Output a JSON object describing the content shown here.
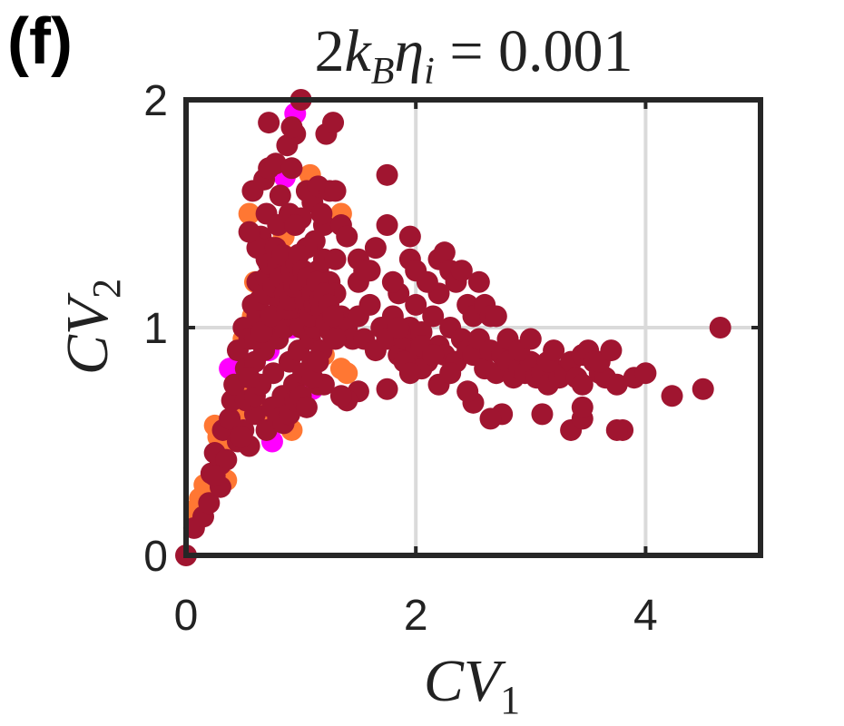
{
  "panel_label": "(f)",
  "chart_data": {
    "type": "scatter",
    "title": "2k_Bη_i = 0.001",
    "title_parts": {
      "pre": "2",
      "k": "k",
      "k_sub": "B",
      "eta": "η",
      "eta_sub": "i",
      "post": " = 0.001"
    },
    "xlabel": "CV_1",
    "xlabel_parts": {
      "main": "CV",
      "sub": "1"
    },
    "ylabel": "CV_2",
    "ylabel_parts": {
      "main": "CV",
      "sub": "2"
    },
    "xlim": [
      0,
      5
    ],
    "ylim": [
      0,
      2
    ],
    "xticks": [
      0,
      2,
      4
    ],
    "yticks": [
      0,
      1,
      2
    ],
    "grid": true,
    "series": [
      {
        "color": "#ff00ff",
        "points": [
          [
            0.95,
            1.94
          ],
          [
            0.86,
            1.66
          ],
          [
            0.72,
            1.15
          ],
          [
            0.78,
            0.98
          ],
          [
            0.6,
            0.85
          ],
          [
            0.38,
            0.82
          ],
          [
            0.75,
            0.5
          ],
          [
            1.1,
            0.73
          ],
          [
            0.72,
            0.9
          ],
          [
            0.92,
            1.0
          ]
        ]
      },
      {
        "color": "#ff7733",
        "points": [
          [
            0.12,
            0.25
          ],
          [
            0.16,
            0.31
          ],
          [
            0.28,
            0.52
          ],
          [
            0.3,
            0.46
          ],
          [
            0.35,
            0.33
          ],
          [
            0.08,
            0.2
          ],
          [
            0.25,
            0.57
          ],
          [
            1.35,
            1.5
          ],
          [
            1.08,
            1.67
          ],
          [
            0.85,
            1.4
          ],
          [
            0.9,
            1.25
          ],
          [
            0.55,
            1.5
          ],
          [
            0.6,
            1.2
          ],
          [
            0.58,
            1.05
          ],
          [
            0.5,
            0.95
          ],
          [
            0.48,
            0.72
          ],
          [
            0.7,
            0.62
          ],
          [
            1.2,
            0.88
          ],
          [
            1.35,
            0.82
          ],
          [
            1.4,
            0.8
          ],
          [
            0.92,
            0.55
          ],
          [
            0.42,
            0.6
          ],
          [
            0.5,
            0.65
          ],
          [
            0.85,
            1.32
          ]
        ]
      },
      {
        "color": "#a01530",
        "points": [
          [
            0.0,
            0.0
          ],
          [
            0.07,
            0.12
          ],
          [
            0.15,
            0.17
          ],
          [
            0.2,
            0.23
          ],
          [
            0.22,
            0.36
          ],
          [
            0.25,
            0.45
          ],
          [
            0.3,
            0.4
          ],
          [
            0.32,
            0.55
          ],
          [
            0.38,
            0.6
          ],
          [
            0.4,
            0.68
          ],
          [
            0.45,
            0.5
          ],
          [
            0.5,
            0.55
          ],
          [
            0.55,
            0.48
          ],
          [
            0.6,
            0.62
          ],
          [
            0.42,
            0.75
          ],
          [
            0.45,
            0.9
          ],
          [
            0.5,
            1.0
          ],
          [
            0.52,
            0.82
          ],
          [
            0.55,
            0.95
          ],
          [
            0.58,
            1.1
          ],
          [
            0.6,
            0.85
          ],
          [
            0.62,
            1.2
          ],
          [
            0.65,
            1.05
          ],
          [
            0.68,
            0.9
          ],
          [
            0.7,
            1.3
          ],
          [
            0.72,
            1.0
          ],
          [
            0.74,
            1.15
          ],
          [
            0.76,
            0.8
          ],
          [
            0.78,
            1.25
          ],
          [
            0.8,
            0.95
          ],
          [
            0.82,
            1.1
          ],
          [
            0.84,
            0.7
          ],
          [
            0.86,
            1.0
          ],
          [
            0.88,
            1.2
          ],
          [
            0.9,
            0.85
          ],
          [
            0.92,
            1.05
          ],
          [
            0.94,
            0.75
          ],
          [
            0.96,
            1.15
          ],
          [
            0.98,
            0.9
          ],
          [
            1.0,
            1.0
          ],
          [
            1.02,
            0.8
          ],
          [
            1.05,
            1.1
          ],
          [
            1.08,
            0.95
          ],
          [
            1.1,
            0.85
          ],
          [
            1.12,
            1.0
          ],
          [
            1.15,
            0.75
          ],
          [
            1.18,
            0.9
          ],
          [
            1.2,
            1.05
          ],
          [
            0.65,
            1.4
          ],
          [
            0.7,
            1.5
          ],
          [
            0.75,
            1.35
          ],
          [
            0.8,
            1.45
          ],
          [
            0.85,
            1.3
          ],
          [
            0.9,
            1.5
          ],
          [
            0.62,
            1.35
          ],
          [
            0.55,
            1.42
          ],
          [
            0.58,
            1.6
          ],
          [
            0.68,
            1.65
          ],
          [
            0.72,
            1.7
          ],
          [
            0.78,
            1.72
          ],
          [
            0.82,
            1.58
          ],
          [
            0.88,
            1.8
          ],
          [
            0.92,
            1.7
          ],
          [
            0.95,
            1.85
          ],
          [
            1.0,
            2.0
          ],
          [
            0.72,
            1.9
          ],
          [
            0.92,
            1.88
          ],
          [
            1.15,
            1.25
          ],
          [
            1.2,
            1.45
          ],
          [
            1.05,
            1.6
          ],
          [
            1.1,
            1.55
          ],
          [
            1.15,
            1.62
          ],
          [
            1.2,
            1.3
          ],
          [
            1.25,
            1.6
          ],
          [
            1.3,
            1.6
          ],
          [
            1.22,
            1.85
          ],
          [
            1.28,
            1.9
          ],
          [
            1.18,
            1.5
          ],
          [
            1.12,
            1.38
          ],
          [
            1.0,
            1.48
          ],
          [
            1.05,
            1.35
          ],
          [
            0.98,
            1.22
          ],
          [
            0.95,
            1.45
          ],
          [
            1.25,
            1.2
          ],
          [
            1.3,
            1.15
          ],
          [
            1.35,
            1.05
          ],
          [
            1.4,
            1.0
          ],
          [
            1.45,
            0.95
          ],
          [
            1.5,
            1.05
          ],
          [
            1.55,
            0.95
          ],
          [
            1.6,
            1.1
          ],
          [
            1.65,
            0.9
          ],
          [
            1.7,
            1.0
          ],
          [
            1.75,
            0.95
          ],
          [
            1.8,
            1.05
          ],
          [
            1.85,
            0.88
          ],
          [
            1.9,
            0.95
          ],
          [
            1.95,
            1.0
          ],
          [
            2.0,
            0.9
          ],
          [
            2.05,
            0.98
          ],
          [
            2.1,
            0.85
          ],
          [
            2.15,
            1.05
          ],
          [
            2.2,
            0.92
          ],
          [
            2.25,
            0.88
          ],
          [
            2.3,
            1.0
          ],
          [
            2.35,
            0.85
          ],
          [
            2.4,
            0.95
          ],
          [
            2.45,
            0.9
          ],
          [
            2.5,
            0.88
          ],
          [
            2.55,
            0.95
          ],
          [
            2.6,
            0.82
          ],
          [
            2.65,
            0.9
          ],
          [
            2.7,
            0.8
          ],
          [
            2.75,
            0.88
          ],
          [
            2.8,
            0.85
          ],
          [
            2.85,
            0.78
          ],
          [
            2.9,
            0.82
          ],
          [
            2.95,
            0.8
          ],
          [
            3.0,
            0.85
          ],
          [
            3.05,
            0.78
          ],
          [
            3.1,
            0.8
          ],
          [
            3.15,
            0.75
          ],
          [
            3.2,
            0.82
          ],
          [
            3.25,
            0.78
          ],
          [
            3.3,
            0.8
          ],
          [
            3.35,
            0.85
          ],
          [
            3.4,
            0.78
          ],
          [
            3.45,
            0.88
          ],
          [
            3.5,
            0.9
          ],
          [
            3.55,
            0.85
          ],
          [
            3.6,
            0.8
          ],
          [
            3.65,
            0.78
          ],
          [
            3.75,
            0.75
          ],
          [
            3.9,
            0.78
          ],
          [
            4.0,
            0.8
          ],
          [
            4.5,
            0.73
          ],
          [
            4.23,
            0.7
          ],
          [
            4.65,
            1.0
          ],
          [
            3.8,
            0.55
          ],
          [
            3.75,
            0.55
          ],
          [
            3.35,
            0.55
          ],
          [
            3.45,
            0.6
          ],
          [
            3.45,
            0.65
          ],
          [
            3.1,
            0.62
          ],
          [
            2.75,
            0.62
          ],
          [
            2.65,
            0.6
          ],
          [
            2.5,
            0.67
          ],
          [
            2.45,
            0.72
          ],
          [
            2.2,
            0.75
          ],
          [
            2.05,
            0.82
          ],
          [
            1.75,
            0.73
          ],
          [
            1.5,
            0.72
          ],
          [
            1.4,
            0.68
          ],
          [
            1.35,
            0.7
          ],
          [
            1.2,
            0.75
          ],
          [
            1.75,
            1.67
          ],
          [
            1.75,
            1.45
          ],
          [
            1.95,
            1.4
          ],
          [
            1.65,
            1.35
          ],
          [
            1.6,
            1.25
          ],
          [
            1.5,
            1.2
          ],
          [
            1.3,
            1.3
          ],
          [
            1.35,
            1.45
          ],
          [
            1.4,
            1.4
          ],
          [
            1.5,
            1.3
          ],
          [
            1.55,
            1.25
          ],
          [
            1.95,
            1.3
          ],
          [
            2.0,
            1.25
          ],
          [
            2.2,
            1.3
          ],
          [
            2.25,
            1.33
          ],
          [
            2.3,
            1.25
          ],
          [
            2.35,
            1.2
          ],
          [
            2.4,
            1.25
          ],
          [
            2.45,
            1.1
          ],
          [
            2.5,
            1.05
          ],
          [
            2.6,
            1.1
          ],
          [
            2.65,
            1.05
          ],
          [
            2.55,
            1.2
          ],
          [
            2.2,
            1.15
          ],
          [
            2.1,
            1.2
          ],
          [
            2.0,
            1.1
          ],
          [
            1.85,
            1.15
          ],
          [
            1.8,
            1.2
          ],
          [
            2.7,
            1.05
          ],
          [
            2.8,
            0.95
          ],
          [
            2.9,
            0.9
          ],
          [
            3.0,
            0.95
          ],
          [
            3.15,
            0.85
          ],
          [
            3.2,
            0.9
          ],
          [
            3.45,
            0.75
          ],
          [
            3.6,
            0.85
          ],
          [
            3.7,
            0.9
          ],
          [
            1.85,
            1.0
          ],
          [
            1.9,
            0.85
          ],
          [
            1.95,
            0.8
          ],
          [
            2.05,
            0.92
          ],
          [
            2.15,
            0.88
          ],
          [
            2.3,
            0.8
          ],
          [
            0.3,
            0.3
          ],
          [
            0.35,
            0.42
          ],
          [
            0.25,
            0.35
          ],
          [
            0.48,
            0.52
          ],
          [
            0.52,
            0.68
          ],
          [
            0.6,
            0.7
          ],
          [
            0.65,
            0.75
          ],
          [
            0.7,
            0.55
          ],
          [
            0.75,
            0.65
          ],
          [
            0.8,
            0.6
          ],
          [
            0.85,
            0.58
          ],
          [
            0.9,
            0.62
          ],
          [
            0.95,
            0.68
          ],
          [
            1.0,
            0.7
          ],
          [
            1.05,
            0.65
          ],
          [
            1.1,
            0.78
          ],
          [
            1.15,
            0.85
          ],
          [
            0.55,
            0.78
          ],
          [
            0.6,
            0.95
          ],
          [
            0.62,
            1.05
          ],
          [
            0.64,
            1.12
          ],
          [
            0.66,
            0.98
          ],
          [
            0.68,
            1.15
          ],
          [
            0.7,
            1.22
          ],
          [
            0.72,
            1.28
          ],
          [
            0.74,
            1.05
          ],
          [
            0.76,
            1.18
          ],
          [
            0.78,
            1.35
          ],
          [
            0.8,
            1.28
          ],
          [
            0.82,
            1.22
          ],
          [
            0.84,
            1.32
          ],
          [
            0.86,
            1.15
          ],
          [
            0.88,
            1.08
          ],
          [
            0.9,
            1.12
          ],
          [
            0.92,
            1.25
          ],
          [
            0.94,
            1.18
          ],
          [
            0.96,
            1.28
          ],
          [
            0.98,
            1.32
          ],
          [
            1.0,
            1.18
          ],
          [
            1.02,
            1.25
          ],
          [
            1.04,
            1.12
          ],
          [
            1.06,
            1.22
          ],
          [
            1.08,
            1.05
          ],
          [
            1.1,
            1.15
          ],
          [
            1.12,
            1.1
          ],
          [
            1.14,
            1.2
          ],
          [
            1.16,
            1.12
          ],
          [
            1.18,
            1.08
          ],
          [
            1.2,
            1.15
          ],
          [
            1.22,
            1.02
          ],
          [
            1.24,
            1.1
          ],
          [
            1.26,
            0.98
          ],
          [
            1.28,
            1.05
          ],
          [
            1.3,
            0.95
          ]
        ]
      }
    ]
  }
}
